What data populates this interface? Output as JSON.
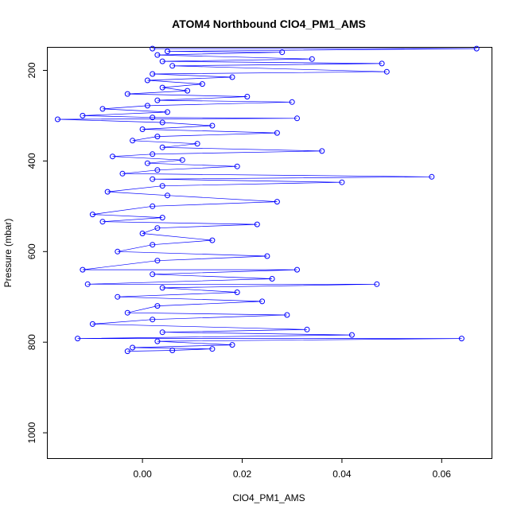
{
  "chart_data": {
    "type": "scatter",
    "title": "ATOM4 Northbound ClO4_PM1_AMS",
    "xlabel": "ClO4_PM1_AMS",
    "ylabel": "Pressure (mbar)",
    "xlim": [
      -0.019,
      0.07
    ],
    "ylim": [
      1056,
      150
    ],
    "y_reversed": true,
    "x_ticks": [
      0.0,
      0.02,
      0.04,
      0.06
    ],
    "x_tick_labels": [
      "0.00",
      "0.02",
      "0.04",
      "0.06"
    ],
    "y_ticks": [
      200,
      400,
      600,
      800,
      1000
    ],
    "y_tick_labels": [
      "200",
      "400",
      "600",
      "800",
      "1000"
    ],
    "grid": false,
    "legend": "none",
    "series": [
      {
        "color": "#0000ff",
        "marker": "open-circle",
        "connected": true,
        "points": [
          {
            "x": 0.002,
            "y": 152
          },
          {
            "x": 0.067,
            "y": 152
          },
          {
            "x": 0.005,
            "y": 158
          },
          {
            "x": 0.028,
            "y": 160
          },
          {
            "x": 0.003,
            "y": 166
          },
          {
            "x": 0.034,
            "y": 175
          },
          {
            "x": 0.004,
            "y": 180
          },
          {
            "x": 0.048,
            "y": 185
          },
          {
            "x": 0.006,
            "y": 190
          },
          {
            "x": 0.049,
            "y": 203
          },
          {
            "x": 0.002,
            "y": 208
          },
          {
            "x": 0.018,
            "y": 215
          },
          {
            "x": 0.001,
            "y": 222
          },
          {
            "x": 0.012,
            "y": 230
          },
          {
            "x": 0.004,
            "y": 238
          },
          {
            "x": 0.009,
            "y": 245
          },
          {
            "x": -0.003,
            "y": 252
          },
          {
            "x": 0.021,
            "y": 258
          },
          {
            "x": 0.003,
            "y": 266
          },
          {
            "x": 0.03,
            "y": 270
          },
          {
            "x": 0.001,
            "y": 278
          },
          {
            "x": -0.008,
            "y": 285
          },
          {
            "x": 0.005,
            "y": 292
          },
          {
            "x": -0.012,
            "y": 300
          },
          {
            "x": 0.002,
            "y": 304
          },
          {
            "x": 0.031,
            "y": 306
          },
          {
            "x": -0.017,
            "y": 308
          },
          {
            "x": 0.004,
            "y": 315
          },
          {
            "x": 0.014,
            "y": 322
          },
          {
            "x": 0.0,
            "y": 330
          },
          {
            "x": 0.027,
            "y": 338
          },
          {
            "x": 0.003,
            "y": 346
          },
          {
            "x": -0.002,
            "y": 355
          },
          {
            "x": 0.011,
            "y": 362
          },
          {
            "x": 0.004,
            "y": 370
          },
          {
            "x": 0.036,
            "y": 378
          },
          {
            "x": 0.002,
            "y": 385
          },
          {
            "x": -0.006,
            "y": 390
          },
          {
            "x": 0.008,
            "y": 398
          },
          {
            "x": 0.001,
            "y": 405
          },
          {
            "x": 0.019,
            "y": 412
          },
          {
            "x": 0.003,
            "y": 420
          },
          {
            "x": -0.004,
            "y": 428
          },
          {
            "x": 0.058,
            "y": 435
          },
          {
            "x": 0.002,
            "y": 440
          },
          {
            "x": 0.04,
            "y": 447
          },
          {
            "x": 0.004,
            "y": 455
          },
          {
            "x": -0.007,
            "y": 468
          },
          {
            "x": 0.005,
            "y": 476
          },
          {
            "x": 0.027,
            "y": 490
          },
          {
            "x": 0.002,
            "y": 500
          },
          {
            "x": -0.01,
            "y": 518
          },
          {
            "x": 0.004,
            "y": 525
          },
          {
            "x": -0.008,
            "y": 534
          },
          {
            "x": 0.023,
            "y": 540
          },
          {
            "x": 0.003,
            "y": 548
          },
          {
            "x": 0.0,
            "y": 560
          },
          {
            "x": 0.014,
            "y": 575
          },
          {
            "x": 0.002,
            "y": 585
          },
          {
            "x": -0.005,
            "y": 600
          },
          {
            "x": 0.025,
            "y": 610
          },
          {
            "x": 0.003,
            "y": 620
          },
          {
            "x": -0.012,
            "y": 640
          },
          {
            "x": 0.031,
            "y": 640
          },
          {
            "x": 0.002,
            "y": 650
          },
          {
            "x": 0.026,
            "y": 660
          },
          {
            "x": -0.011,
            "y": 672
          },
          {
            "x": 0.047,
            "y": 672
          },
          {
            "x": 0.004,
            "y": 680
          },
          {
            "x": 0.019,
            "y": 690
          },
          {
            "x": -0.005,
            "y": 700
          },
          {
            "x": 0.024,
            "y": 710
          },
          {
            "x": 0.003,
            "y": 720
          },
          {
            "x": -0.003,
            "y": 735
          },
          {
            "x": 0.029,
            "y": 740
          },
          {
            "x": 0.002,
            "y": 750
          },
          {
            "x": -0.01,
            "y": 760
          },
          {
            "x": 0.033,
            "y": 772
          },
          {
            "x": 0.004,
            "y": 778
          },
          {
            "x": 0.042,
            "y": 784
          },
          {
            "x": -0.013,
            "y": 792
          },
          {
            "x": 0.064,
            "y": 792
          },
          {
            "x": 0.003,
            "y": 798
          },
          {
            "x": 0.018,
            "y": 806
          },
          {
            "x": -0.002,
            "y": 812
          },
          {
            "x": 0.014,
            "y": 815
          },
          {
            "x": 0.006,
            "y": 818
          },
          {
            "x": -0.003,
            "y": 820
          }
        ]
      }
    ]
  }
}
